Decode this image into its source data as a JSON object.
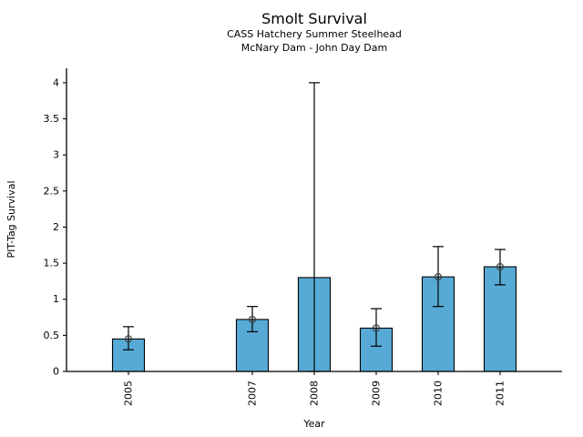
{
  "chart_data": {
    "type": "bar",
    "title": "Smolt Survival",
    "subtitle1": "CASS Hatchery Summer Steelhead",
    "subtitle2": "McNary Dam - John Day Dam",
    "xlabel": "Year",
    "ylabel": "PIT-Tag Survival",
    "x": [
      2005,
      2007,
      2008,
      2009,
      2010,
      2011
    ],
    "categories": [
      "2005",
      "2007",
      "2008",
      "2009",
      "2010",
      "2011"
    ],
    "values": [
      0.45,
      0.72,
      1.3,
      0.6,
      1.31,
      1.45
    ],
    "error_low": [
      0.3,
      0.55,
      0.0,
      0.35,
      0.9,
      1.2
    ],
    "error_high": [
      0.62,
      0.9,
      4.0,
      0.87,
      1.73,
      1.69
    ],
    "marker_values": [
      0.45,
      0.72,
      null,
      0.6,
      1.31,
      1.45
    ],
    "xlim": [
      2004,
      2012
    ],
    "ylim": [
      0,
      4.2
    ],
    "yticks": [
      0,
      0.5,
      1,
      1.5,
      2,
      2.5,
      3,
      3.5,
      4
    ],
    "ytick_labels": [
      "0",
      "0.5",
      "1",
      "1.5",
      "2",
      "2.5",
      "3",
      "3.5",
      "4"
    ],
    "grid": false,
    "legend": null,
    "bar_color": "#58AAD6",
    "bar_edge_color": "#000000",
    "error_bar_color": "#000000",
    "marker_color": "#404040",
    "axis_color": "#000000"
  }
}
